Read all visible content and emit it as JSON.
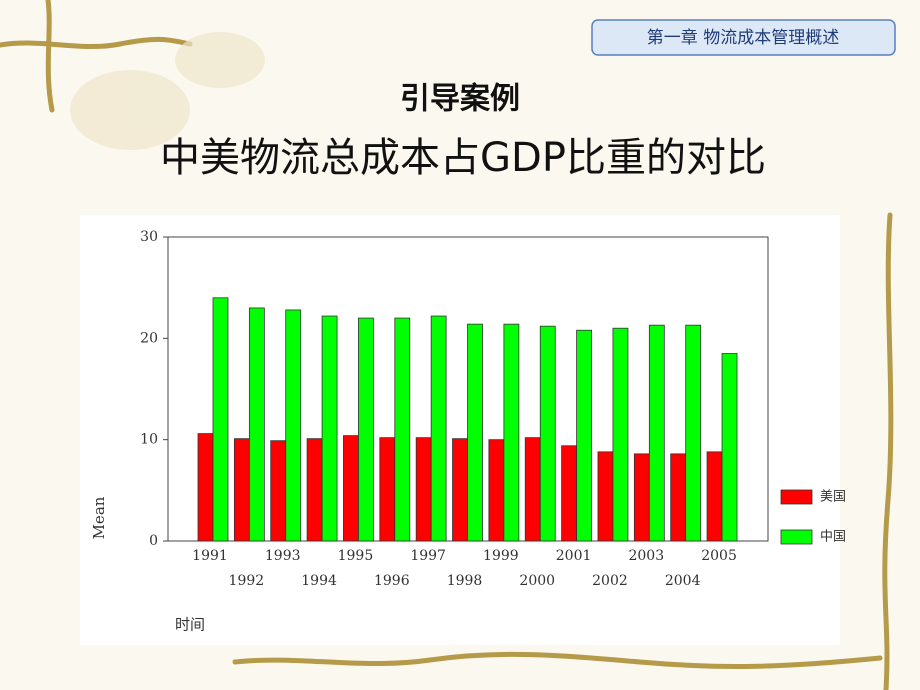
{
  "slide": {
    "tag": "第一章 物流成本管理概述",
    "heading": "引导案例",
    "title": "中美物流总成本占GDP比重的对比"
  },
  "chart_data": {
    "type": "bar",
    "categories": [
      "1991",
      "1992",
      "1993",
      "1994",
      "1995",
      "1996",
      "1997",
      "1998",
      "1999",
      "2000",
      "2001",
      "2002",
      "2003",
      "2004",
      "2005"
    ],
    "series": [
      {
        "name": "美国",
        "color": "#ff0000",
        "values": [
          10.6,
          10.1,
          9.9,
          10.1,
          10.4,
          10.2,
          10.2,
          10.1,
          10.0,
          10.2,
          9.4,
          8.8,
          8.6,
          8.6,
          8.8
        ]
      },
      {
        "name": "中国",
        "color": "#00ff00",
        "values": [
          24.0,
          23.0,
          22.8,
          22.2,
          22.0,
          22.0,
          22.2,
          21.4,
          21.4,
          21.2,
          20.8,
          21.0,
          21.3,
          21.3,
          18.5
        ]
      }
    ],
    "ylim": [
      0,
      30
    ],
    "yticks": [
      0,
      10,
      20,
      30
    ],
    "ylabel": "Mean",
    "xlabel": "时间",
    "legend": "right"
  }
}
